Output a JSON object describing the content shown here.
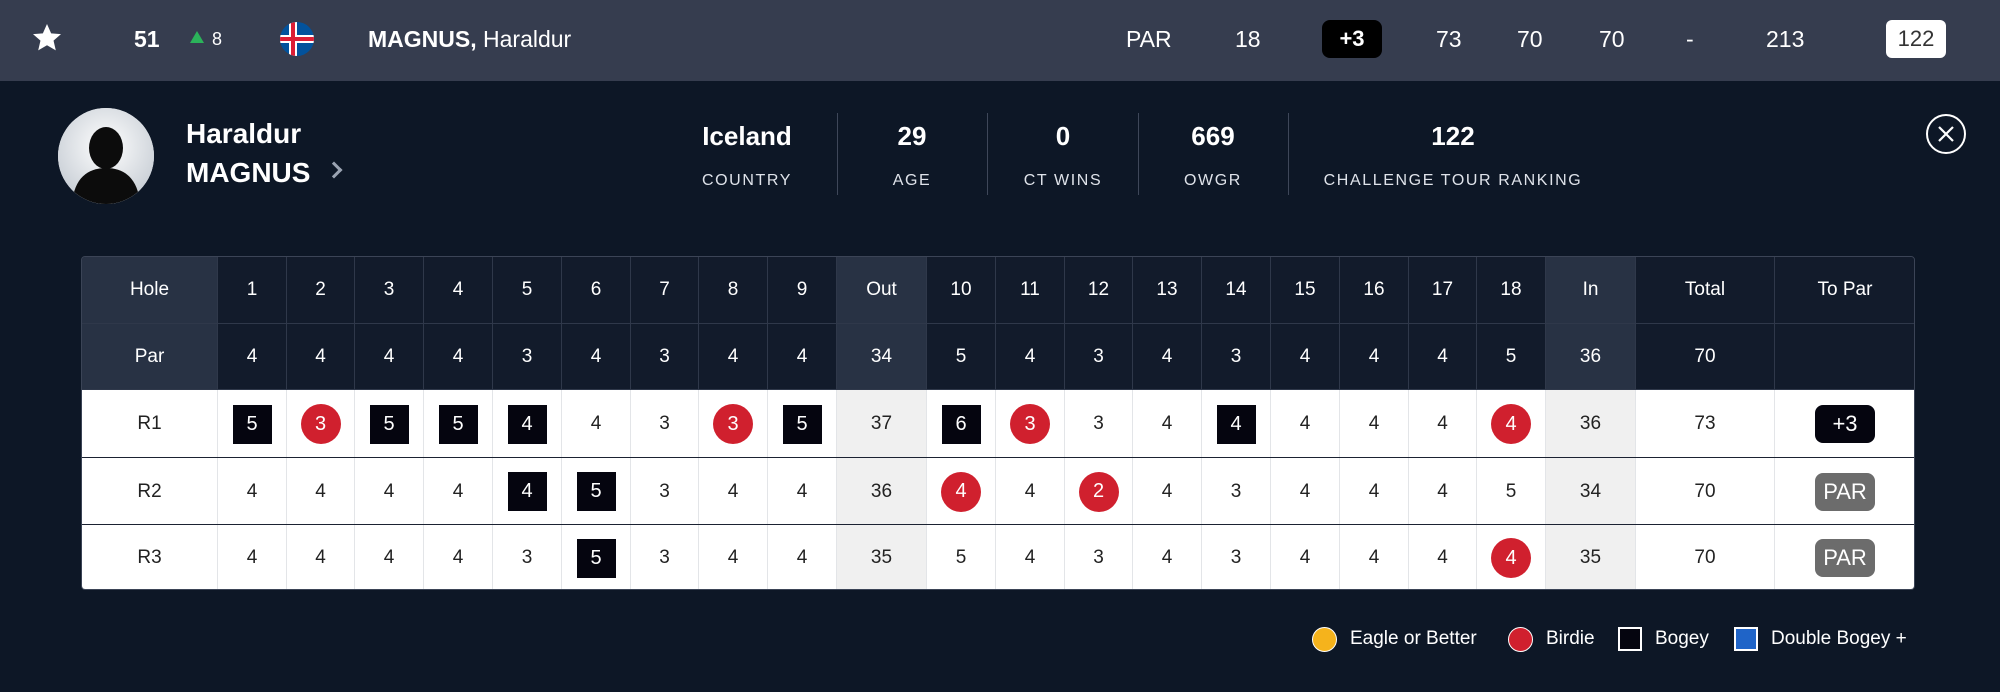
{
  "topbar": {
    "position": "51",
    "movement": "8",
    "last_name": "MAGNUS,",
    "first_name": "Haraldur",
    "par_label": "PAR",
    "thru": "18",
    "to_par": "+3",
    "rounds": [
      "73",
      "70",
      "70",
      "-"
    ],
    "total": "213",
    "ranking": "122"
  },
  "player": {
    "first_name": "Haraldur",
    "last_name": "MAGNUS",
    "stats": [
      {
        "value": "Iceland",
        "label": "COUNTRY"
      },
      {
        "value": "29",
        "label": "AGE"
      },
      {
        "value": "0",
        "label": "CT WINS"
      },
      {
        "value": "669",
        "label": "OWGR"
      },
      {
        "value": "122",
        "label": "CHALLENGE TOUR RANKING"
      }
    ]
  },
  "scorecard": {
    "header": [
      "Hole",
      "1",
      "2",
      "3",
      "4",
      "5",
      "6",
      "7",
      "8",
      "9",
      "Out",
      "10",
      "11",
      "12",
      "13",
      "14",
      "15",
      "16",
      "17",
      "18",
      "In",
      "Total",
      "To Par"
    ],
    "par_row": [
      "Par",
      "4",
      "4",
      "4",
      "4",
      "3",
      "4",
      "3",
      "4",
      "4",
      "34",
      "5",
      "4",
      "3",
      "4",
      "3",
      "4",
      "4",
      "4",
      "5",
      "36",
      "70",
      ""
    ],
    "rounds": [
      {
        "label": "R1",
        "scores": [
          "5",
          "3",
          "5",
          "5",
          "4",
          "4",
          "3",
          "3",
          "5",
          "37",
          "6",
          "3",
          "3",
          "4",
          "4",
          "4",
          "4",
          "4",
          "4",
          "36",
          "73"
        ],
        "to_par": "+3"
      },
      {
        "label": "R2",
        "scores": [
          "4",
          "4",
          "4",
          "4",
          "4",
          "5",
          "3",
          "4",
          "4",
          "36",
          "4",
          "4",
          "2",
          "4",
          "3",
          "4",
          "4",
          "4",
          "5",
          "34",
          "70"
        ],
        "to_par": "PAR"
      },
      {
        "label": "R3",
        "scores": [
          "4",
          "4",
          "4",
          "4",
          "3",
          "5",
          "3",
          "4",
          "4",
          "35",
          "5",
          "4",
          "3",
          "4",
          "3",
          "4",
          "4",
          "4",
          "4",
          "35",
          "70"
        ],
        "to_par": "PAR"
      }
    ]
  },
  "legend": {
    "eagle": "Eagle or Better",
    "birdie": "Birdie",
    "bogey": "Bogey",
    "double_bogey": "Double Bogey +"
  },
  "colors": {
    "birdie": "#d0202e",
    "eagle": "#f5b31c",
    "bogey": "#05050f",
    "double_bogey": "#1f64c8",
    "background": "#0d1726",
    "topbar": "#363d4f"
  }
}
